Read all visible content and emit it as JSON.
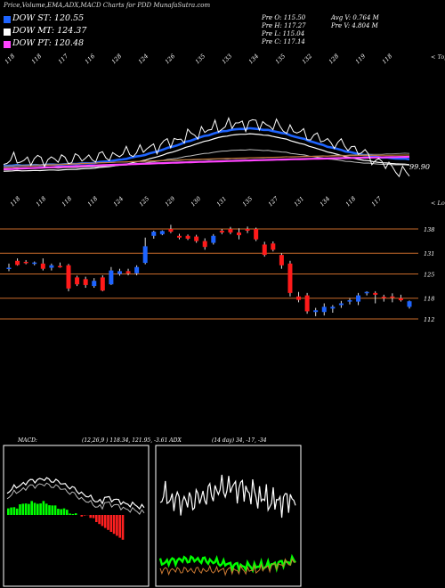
{
  "header": {
    "title": "Price,Volume,EMA,ADX,MACD Charts for PDD MunafaSutra.com"
  },
  "legend": [
    {
      "label": "DOW ST: 120.55",
      "color": "#1e64ff"
    },
    {
      "label": "DOW MT: 124.37",
      "color": "#ffffff"
    },
    {
      "label": "DOW PT: 120.48",
      "color": "#ff44ff"
    }
  ],
  "stats": {
    "prev_open": "Pre   O: 115.50",
    "prev_high": "Pre   H: 117.27",
    "prev_low": "Pre   L: 115.04",
    "prev_close": "Pre   C: 117.14",
    "avg_volume": "Avg V: 0.764  M",
    "prev_volume": "Pre  V: 4.804  M"
  },
  "panel_labels": {
    "tops": "< Tops",
    "lows": "< Lows",
    "ema_last": "99.90",
    "macd": "MACD:",
    "macd_values": "(12,26,9 ) 118.34,  121.95, -3.61 ADX",
    "adx_values": "(14  day) 34,  -17,  -34"
  },
  "chart_data": [
    {
      "type": "line",
      "panel": "ema",
      "top_labels": [
        "118",
        "118",
        "117",
        "116",
        "128",
        "124",
        "126",
        "135",
        "133",
        "134",
        "135",
        "132",
        "128",
        "119",
        "118"
      ],
      "bottom_labels": [
        "118",
        "118",
        "118",
        "118",
        "124",
        "125",
        "129",
        "130",
        "131",
        "135",
        "127",
        "131",
        "134",
        "118",
        "117"
      ],
      "series": [
        {
          "name": "DOW ST",
          "color": "#1e64ff"
        },
        {
          "name": "DOW MT",
          "color": "#ffffff"
        },
        {
          "name": "DOW PT",
          "color": "#ff44ff"
        }
      ],
      "last_value": 99.9
    },
    {
      "type": "candlestick",
      "panel": "price",
      "y_ticks": [
        138,
        131,
        125,
        118,
        112
      ],
      "candles": [
        {
          "o": 126.5,
          "h": 128.0,
          "l": 125.8,
          "c": 126.8
        },
        {
          "o": 128.8,
          "h": 129.5,
          "l": 127.4,
          "c": 127.6
        },
        {
          "o": 128.5,
          "h": 129.0,
          "l": 127.8,
          "c": 128.2
        },
        {
          "o": 128.0,
          "h": 128.6,
          "l": 127.5,
          "c": 128.3
        },
        {
          "o": 128.0,
          "h": 129.5,
          "l": 126.0,
          "c": 126.5
        },
        {
          "o": 126.8,
          "h": 128.0,
          "l": 126.0,
          "c": 127.5
        },
        {
          "o": 127.3,
          "h": 128.3,
          "l": 126.8,
          "c": 127.2
        },
        {
          "o": 127.5,
          "h": 127.9,
          "l": 120.0,
          "c": 120.8
        },
        {
          "o": 124.0,
          "h": 124.5,
          "l": 121.5,
          "c": 122.0
        },
        {
          "o": 123.5,
          "h": 124.2,
          "l": 121.0,
          "c": 121.8
        },
        {
          "o": 121.5,
          "h": 123.8,
          "l": 121.0,
          "c": 123.0
        },
        {
          "o": 124.0,
          "h": 124.6,
          "l": 120.0,
          "c": 120.2
        },
        {
          "o": 122.0,
          "h": 127.0,
          "l": 121.8,
          "c": 126.0
        },
        {
          "o": 125.0,
          "h": 126.5,
          "l": 124.5,
          "c": 125.8
        },
        {
          "o": 125.8,
          "h": 126.5,
          "l": 124.6,
          "c": 125.2
        },
        {
          "o": 125.2,
          "h": 127.5,
          "l": 124.6,
          "c": 127.0
        },
        {
          "o": 128.2,
          "h": 135.5,
          "l": 127.8,
          "c": 133.0
        },
        {
          "o": 136.0,
          "h": 137.5,
          "l": 135.2,
          "c": 137.2
        },
        {
          "o": 136.5,
          "h": 137.6,
          "l": 136.2,
          "c": 137.4
        },
        {
          "o": 138.0,
          "h": 139.2,
          "l": 136.8,
          "c": 137.2
        },
        {
          "o": 136.0,
          "h": 136.6,
          "l": 135.0,
          "c": 135.5
        },
        {
          "o": 136.0,
          "h": 136.4,
          "l": 134.8,
          "c": 135.2
        },
        {
          "o": 135.8,
          "h": 136.3,
          "l": 134.0,
          "c": 134.5
        },
        {
          "o": 134.5,
          "h": 135.3,
          "l": 132.0,
          "c": 132.8
        },
        {
          "o": 134.0,
          "h": 136.5,
          "l": 133.5,
          "c": 136.0
        },
        {
          "o": 137.5,
          "h": 138.0,
          "l": 136.5,
          "c": 137.0
        },
        {
          "o": 138.0,
          "h": 138.6,
          "l": 136.5,
          "c": 137.0
        },
        {
          "o": 137.0,
          "h": 138.2,
          "l": 135.0,
          "c": 136.2
        },
        {
          "o": 138.0,
          "h": 138.7,
          "l": 136.8,
          "c": 137.5
        },
        {
          "o": 138.0,
          "h": 138.4,
          "l": 134.5,
          "c": 135.0
        },
        {
          "o": 133.5,
          "h": 134.3,
          "l": 130.0,
          "c": 130.5
        },
        {
          "o": 133.8,
          "h": 134.4,
          "l": 131.5,
          "c": 132.0
        },
        {
          "o": 130.5,
          "h": 131.0,
          "l": 126.5,
          "c": 127.5
        },
        {
          "o": 128.0,
          "h": 128.8,
          "l": 118.5,
          "c": 119.5
        },
        {
          "o": 118.5,
          "h": 119.8,
          "l": 116.8,
          "c": 117.5
        },
        {
          "o": 118.8,
          "h": 119.5,
          "l": 113.5,
          "c": 114.2
        },
        {
          "o": 114.0,
          "h": 115.2,
          "l": 112.8,
          "c": 114.5
        },
        {
          "o": 114.0,
          "h": 116.5,
          "l": 113.0,
          "c": 115.5
        },
        {
          "o": 115.0,
          "h": 116.0,
          "l": 113.8,
          "c": 115.5
        },
        {
          "o": 116.0,
          "h": 117.2,
          "l": 115.2,
          "c": 116.5
        },
        {
          "o": 117.0,
          "h": 118.0,
          "l": 116.2,
          "c": 117.4
        },
        {
          "o": 117.0,
          "h": 119.5,
          "l": 116.0,
          "c": 118.8
        },
        {
          "o": 119.5,
          "h": 120.0,
          "l": 118.8,
          "c": 119.8
        },
        {
          "o": 119.5,
          "h": 120.0,
          "l": 116.5,
          "c": 119.0
        },
        {
          "o": 118.4,
          "h": 119.0,
          "l": 117.0,
          "c": 118.1
        },
        {
          "o": 118.5,
          "h": 119.4,
          "l": 116.8,
          "c": 118.2
        },
        {
          "o": 118.0,
          "h": 119.0,
          "l": 117.0,
          "c": 117.4
        },
        {
          "o": 115.5,
          "h": 117.3,
          "l": 115.0,
          "c": 117.1
        }
      ]
    },
    {
      "type": "line",
      "panel": "macd",
      "title": "MACD",
      "macd": 118.34,
      "signal": 121.95,
      "histogram": -3.61
    },
    {
      "type": "line",
      "panel": "adx",
      "title": "ADX",
      "period": 14,
      "adx": 34,
      "di_minus": -17,
      "di_plus": -34
    }
  ]
}
